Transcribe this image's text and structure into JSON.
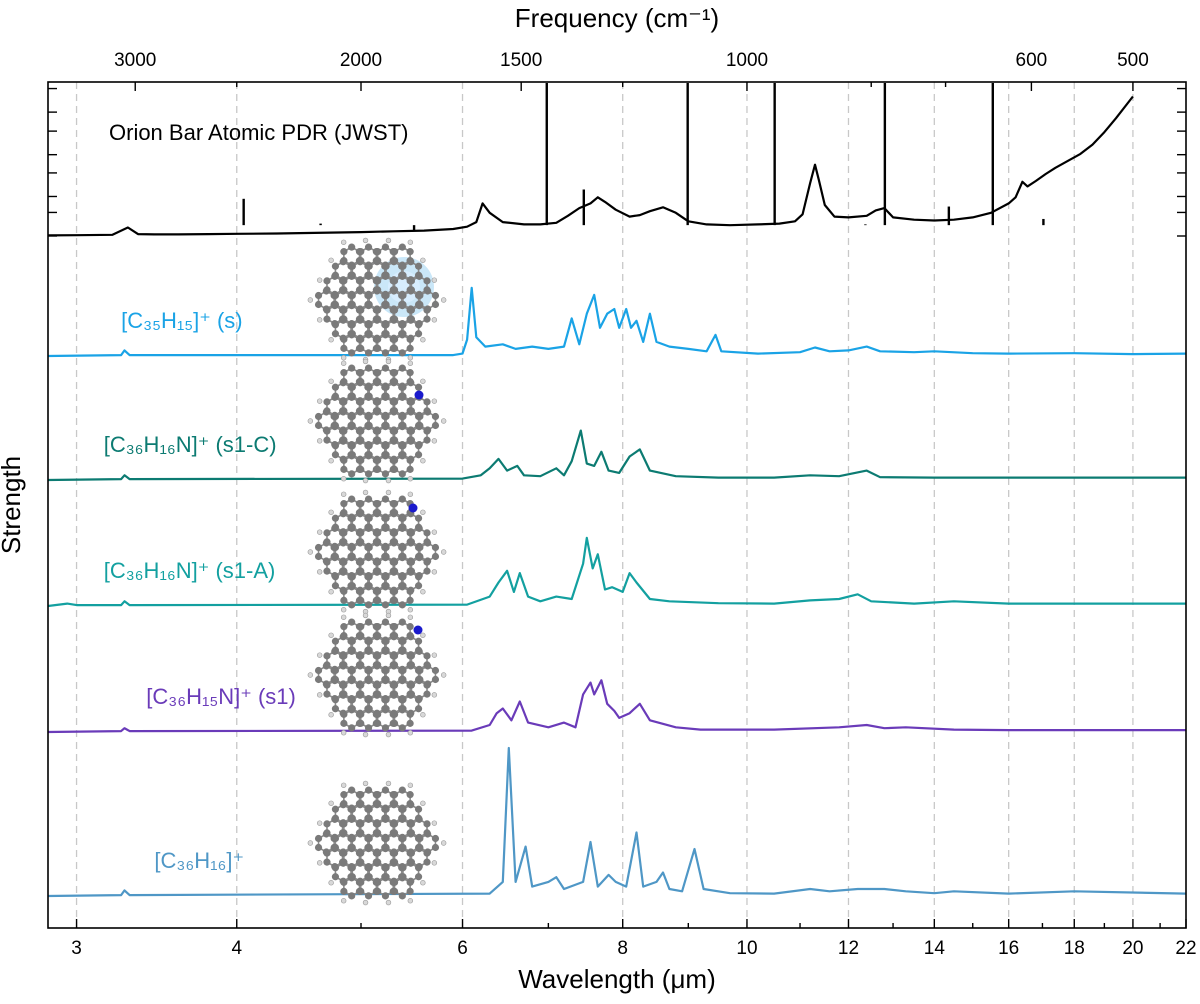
{
  "chart_data": {
    "type": "line",
    "title": "",
    "xlabel": "Wavelength (μm)",
    "x2label": "Frequency (cm⁻¹)",
    "ylabel": "Strength",
    "xscale": "log",
    "xlim": [
      2.85,
      22
    ],
    "grid": true,
    "x_ticks": [
      {
        "value": 3,
        "label": "3"
      },
      {
        "value": 4,
        "label": "4"
      },
      {
        "value": 6,
        "label": "6"
      },
      {
        "value": 8,
        "label": "8"
      },
      {
        "value": 10,
        "label": "10"
      },
      {
        "value": 12,
        "label": "12"
      },
      {
        "value": 14,
        "label": "14"
      },
      {
        "value": 16,
        "label": "16"
      },
      {
        "value": 18,
        "label": "18"
      },
      {
        "value": 20,
        "label": "20"
      },
      {
        "value": 22,
        "label": "22"
      }
    ],
    "x_minor_ticks": [
      5,
      7,
      9,
      11,
      13,
      15,
      17,
      19,
      21
    ],
    "top_ticks": [
      {
        "value": 3000,
        "label": "3000"
      },
      {
        "value": 2000,
        "label": "2000"
      },
      {
        "value": 1500,
        "label": "1500"
      },
      {
        "value": 1000,
        "label": "1000"
      },
      {
        "value": 600,
        "label": "600"
      },
      {
        "value": 500,
        "label": "500"
      }
    ],
    "top_minor_ticks": [
      2500,
      1250,
      800,
      700
    ],
    "series": [
      {
        "name": "Orion Bar Atomic PDR (JWST)",
        "color": "#000000",
        "baseline": 0.0,
        "points": [
          [
            2.85,
            0.04
          ],
          [
            3.0,
            0.05
          ],
          [
            3.2,
            0.08
          ],
          [
            3.29,
            0.55
          ],
          [
            3.35,
            0.12
          ],
          [
            3.45,
            0.1
          ],
          [
            3.6,
            0.1
          ],
          [
            3.8,
            0.12
          ],
          [
            4.0,
            0.14
          ],
          [
            4.3,
            0.16
          ],
          [
            4.6,
            0.2
          ],
          [
            5.0,
            0.25
          ],
          [
            5.3,
            0.3
          ],
          [
            5.6,
            0.35
          ],
          [
            5.9,
            0.45
          ],
          [
            6.05,
            0.6
          ],
          [
            6.15,
            0.9
          ],
          [
            6.22,
            2.1
          ],
          [
            6.3,
            1.5
          ],
          [
            6.45,
            0.9
          ],
          [
            6.7,
            0.75
          ],
          [
            6.9,
            0.75
          ],
          [
            7.1,
            0.85
          ],
          [
            7.25,
            1.3
          ],
          [
            7.4,
            1.8
          ],
          [
            7.55,
            2.1
          ],
          [
            7.65,
            2.5
          ],
          [
            7.75,
            2.2
          ],
          [
            7.9,
            1.7
          ],
          [
            8.1,
            1.25
          ],
          [
            8.25,
            1.35
          ],
          [
            8.4,
            1.6
          ],
          [
            8.6,
            1.85
          ],
          [
            8.8,
            1.5
          ],
          [
            9.0,
            0.95
          ],
          [
            9.3,
            0.75
          ],
          [
            9.7,
            0.7
          ],
          [
            10.2,
            0.75
          ],
          [
            10.6,
            0.8
          ],
          [
            10.9,
            0.95
          ],
          [
            11.05,
            1.4
          ],
          [
            11.2,
            3.4
          ],
          [
            11.3,
            4.6
          ],
          [
            11.38,
            3.6
          ],
          [
            11.5,
            2.0
          ],
          [
            11.7,
            1.25
          ],
          [
            12.0,
            1.2
          ],
          [
            12.4,
            1.3
          ],
          [
            12.6,
            1.65
          ],
          [
            12.8,
            1.8
          ],
          [
            13.0,
            1.2
          ],
          [
            13.5,
            1.05
          ],
          [
            14.0,
            1.0
          ],
          [
            14.5,
            1.05
          ],
          [
            15.0,
            1.2
          ],
          [
            15.5,
            1.5
          ],
          [
            16.0,
            2.1
          ],
          [
            16.2,
            2.5
          ],
          [
            16.4,
            3.5
          ],
          [
            16.55,
            3.2
          ],
          [
            16.8,
            3.55
          ],
          [
            17.1,
            4.0
          ],
          [
            17.4,
            4.4
          ],
          [
            17.8,
            4.85
          ],
          [
            18.2,
            5.3
          ],
          [
            18.6,
            5.9
          ],
          [
            19.0,
            6.7
          ],
          [
            19.4,
            7.6
          ],
          [
            20.0,
            9.0
          ]
        ],
        "lines": [
          [
            4.05,
            2.4
          ],
          [
            4.65,
            0.8
          ],
          [
            5.5,
            0.35
          ],
          [
            6.98,
            10.0
          ],
          [
            7.46,
            3.0
          ],
          [
            8.99,
            10.0
          ],
          [
            10.51,
            10.0
          ],
          [
            12.37,
            0.75
          ],
          [
            12.81,
            10.0
          ],
          [
            14.37,
            1.9
          ],
          [
            15.55,
            10.0
          ],
          [
            17.03,
            1.1
          ]
        ],
        "label_pos": [
          3.18,
          2.9
        ]
      },
      {
        "name": "[C₃₅H₁₅]⁺ (s)",
        "color": "#1aa3e6",
        "baseline": 2.6,
        "points": [
          [
            2.85,
            0
          ],
          [
            3.25,
            0.02
          ],
          [
            3.27,
            0.12
          ],
          [
            3.3,
            0.02
          ],
          [
            5.9,
            0.02
          ],
          [
            6.0,
            0.05
          ],
          [
            6.05,
            0.35
          ],
          [
            6.1,
            1.45
          ],
          [
            6.15,
            0.4
          ],
          [
            6.25,
            0.2
          ],
          [
            6.45,
            0.25
          ],
          [
            6.6,
            0.15
          ],
          [
            6.8,
            0.2
          ],
          [
            7.0,
            0.15
          ],
          [
            7.2,
            0.2
          ],
          [
            7.3,
            0.8
          ],
          [
            7.4,
            0.25
          ],
          [
            7.5,
            0.9
          ],
          [
            7.6,
            1.3
          ],
          [
            7.68,
            0.6
          ],
          [
            7.78,
            0.9
          ],
          [
            7.88,
            1.0
          ],
          [
            7.95,
            0.6
          ],
          [
            8.05,
            1.0
          ],
          [
            8.12,
            0.6
          ],
          [
            8.2,
            0.75
          ],
          [
            8.3,
            0.3
          ],
          [
            8.4,
            0.9
          ],
          [
            8.5,
            0.3
          ],
          [
            8.7,
            0.2
          ],
          [
            9.0,
            0.15
          ],
          [
            9.3,
            0.1
          ],
          [
            9.45,
            0.45
          ],
          [
            9.55,
            0.1
          ],
          [
            10.2,
            0.05
          ],
          [
            11.0,
            0.08
          ],
          [
            11.3,
            0.18
          ],
          [
            11.6,
            0.1
          ],
          [
            12.0,
            0.12
          ],
          [
            12.4,
            0.2
          ],
          [
            12.7,
            0.1
          ],
          [
            13.5,
            0.08
          ],
          [
            14.0,
            0.1
          ],
          [
            15.0,
            0.06
          ],
          [
            16.0,
            0.05
          ],
          [
            18.0,
            0.06
          ],
          [
            20.0,
            0.04
          ],
          [
            22.0,
            0.05
          ]
        ],
        "label_pos": [
          3.25,
          2.85
        ]
      },
      {
        "name": "[C₃₆H₁₆N]⁺ (s1-C)",
        "color": "#0c7b72",
        "baseline": 5.35,
        "points": [
          [
            2.85,
            0
          ],
          [
            3.25,
            0.02
          ],
          [
            3.27,
            0.1
          ],
          [
            3.3,
            0.02
          ],
          [
            6.0,
            0.03
          ],
          [
            6.2,
            0.1
          ],
          [
            6.3,
            0.25
          ],
          [
            6.4,
            0.45
          ],
          [
            6.5,
            0.2
          ],
          [
            6.62,
            0.3
          ],
          [
            6.7,
            0.1
          ],
          [
            6.9,
            0.08
          ],
          [
            7.1,
            0.25
          ],
          [
            7.2,
            0.1
          ],
          [
            7.3,
            0.4
          ],
          [
            7.42,
            1.05
          ],
          [
            7.5,
            0.35
          ],
          [
            7.6,
            0.3
          ],
          [
            7.7,
            0.6
          ],
          [
            7.8,
            0.2
          ],
          [
            7.95,
            0.15
          ],
          [
            8.1,
            0.5
          ],
          [
            8.25,
            0.65
          ],
          [
            8.4,
            0.2
          ],
          [
            8.8,
            0.08
          ],
          [
            9.5,
            0.05
          ],
          [
            10.5,
            0.05
          ],
          [
            11.2,
            0.1
          ],
          [
            11.8,
            0.08
          ],
          [
            12.4,
            0.2
          ],
          [
            12.7,
            0.06
          ],
          [
            14.0,
            0.05
          ],
          [
            16.0,
            0.05
          ],
          [
            18.0,
            0.05
          ],
          [
            22.0,
            0.05
          ]
        ],
        "label_pos": [
          3.15,
          5.6
        ]
      },
      {
        "name": "[C₃₆H₁₆N]⁺ (s1-A)",
        "color": "#13a0a0",
        "baseline": 8.15,
        "points": [
          [
            2.85,
            0
          ],
          [
            2.95,
            0.05
          ],
          [
            3.0,
            0.02
          ],
          [
            3.25,
            0.02
          ],
          [
            3.27,
            0.1
          ],
          [
            3.3,
            0.02
          ],
          [
            6.05,
            0.03
          ],
          [
            6.3,
            0.2
          ],
          [
            6.4,
            0.5
          ],
          [
            6.5,
            0.75
          ],
          [
            6.58,
            0.3
          ],
          [
            6.65,
            0.7
          ],
          [
            6.75,
            0.2
          ],
          [
            6.9,
            0.1
          ],
          [
            7.1,
            0.2
          ],
          [
            7.3,
            0.15
          ],
          [
            7.45,
            0.9
          ],
          [
            7.5,
            1.45
          ],
          [
            7.58,
            0.8
          ],
          [
            7.65,
            1.1
          ],
          [
            7.75,
            0.35
          ],
          [
            7.85,
            0.4
          ],
          [
            8.0,
            0.3
          ],
          [
            8.1,
            0.7
          ],
          [
            8.2,
            0.5
          ],
          [
            8.4,
            0.15
          ],
          [
            8.7,
            0.1
          ],
          [
            9.5,
            0.06
          ],
          [
            10.5,
            0.05
          ],
          [
            11.2,
            0.12
          ],
          [
            11.8,
            0.15
          ],
          [
            12.2,
            0.25
          ],
          [
            12.5,
            0.1
          ],
          [
            13.5,
            0.05
          ],
          [
            14.5,
            0.1
          ],
          [
            16.0,
            0.05
          ],
          [
            18.0,
            0.05
          ],
          [
            22.0,
            0.05
          ]
        ],
        "label_pos": [
          3.15,
          8.45
        ]
      },
      {
        "name": "[C₃₆H₁₅N]⁺ (s1)",
        "color": "#6a3bb9",
        "baseline": 10.95,
        "points": [
          [
            2.85,
            0
          ],
          [
            3.25,
            0.02
          ],
          [
            3.27,
            0.08
          ],
          [
            3.3,
            0.02
          ],
          [
            6.1,
            0.03
          ],
          [
            6.3,
            0.15
          ],
          [
            6.38,
            0.4
          ],
          [
            6.45,
            0.5
          ],
          [
            6.55,
            0.25
          ],
          [
            6.65,
            0.65
          ],
          [
            6.75,
            0.2
          ],
          [
            7.0,
            0.1
          ],
          [
            7.2,
            0.2
          ],
          [
            7.35,
            0.1
          ],
          [
            7.45,
            0.8
          ],
          [
            7.55,
            1.05
          ],
          [
            7.6,
            0.8
          ],
          [
            7.7,
            1.1
          ],
          [
            7.78,
            0.6
          ],
          [
            7.88,
            0.45
          ],
          [
            7.95,
            0.3
          ],
          [
            8.1,
            0.4
          ],
          [
            8.25,
            0.6
          ],
          [
            8.4,
            0.25
          ],
          [
            8.8,
            0.1
          ],
          [
            9.2,
            0.05
          ],
          [
            10.5,
            0.05
          ],
          [
            11.8,
            0.1
          ],
          [
            12.4,
            0.15
          ],
          [
            12.8,
            0.08
          ],
          [
            13.3,
            0.1
          ],
          [
            14.5,
            0.05
          ],
          [
            16.0,
            0.04
          ],
          [
            18.0,
            0.04
          ],
          [
            22.0,
            0.04
          ]
        ],
        "label_pos": [
          3.4,
          11.25
        ]
      },
      {
        "name": "[C₃₆H₁₆]⁺",
        "color": "#4f97c6",
        "baseline": 14.7,
        "points": [
          [
            2.85,
            0
          ],
          [
            3.25,
            0.02
          ],
          [
            3.27,
            0.12
          ],
          [
            3.3,
            0.02
          ],
          [
            6.3,
            0.05
          ],
          [
            6.45,
            0.3
          ],
          [
            6.52,
            3.15
          ],
          [
            6.6,
            0.3
          ],
          [
            6.72,
            1.05
          ],
          [
            6.8,
            0.2
          ],
          [
            7.0,
            0.3
          ],
          [
            7.1,
            0.4
          ],
          [
            7.2,
            0.15
          ],
          [
            7.45,
            0.3
          ],
          [
            7.55,
            1.15
          ],
          [
            7.65,
            0.2
          ],
          [
            7.8,
            0.45
          ],
          [
            7.9,
            0.3
          ],
          [
            8.05,
            0.2
          ],
          [
            8.2,
            1.35
          ],
          [
            8.3,
            0.2
          ],
          [
            8.5,
            0.3
          ],
          [
            8.6,
            0.5
          ],
          [
            8.7,
            0.15
          ],
          [
            8.9,
            0.1
          ],
          [
            9.1,
            1.0
          ],
          [
            9.25,
            0.15
          ],
          [
            9.7,
            0.06
          ],
          [
            10.5,
            0.05
          ],
          [
            11.2,
            0.15
          ],
          [
            11.6,
            0.1
          ],
          [
            12.2,
            0.15
          ],
          [
            12.8,
            0.15
          ],
          [
            13.3,
            0.1
          ],
          [
            14.0,
            0.06
          ],
          [
            14.5,
            0.1
          ],
          [
            16.0,
            0.05
          ],
          [
            18.0,
            0.1
          ],
          [
            22.0,
            0.05
          ]
        ],
        "label_pos": [
          3.45,
          15.0
        ]
      }
    ]
  }
}
